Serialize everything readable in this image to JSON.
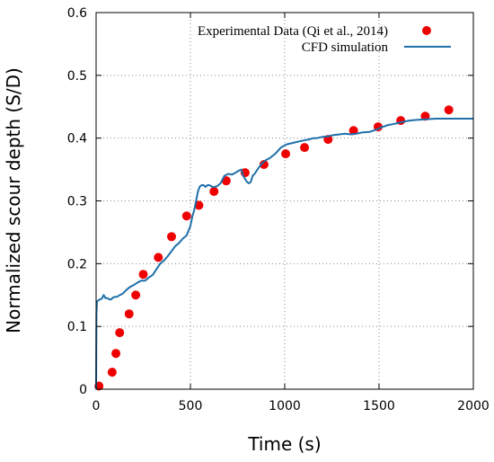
{
  "chart_data": {
    "type": "line",
    "title": "",
    "xlabel": "Time (s)",
    "ylabel": "Normalized scour depth (S/D)",
    "xlim": [
      0,
      2000
    ],
    "ylim": [
      0,
      0.6
    ],
    "xticks": [
      0,
      500,
      1000,
      1500,
      2000
    ],
    "yticks": [
      0,
      0.1,
      0.2,
      0.3,
      0.4,
      0.5,
      0.6
    ],
    "grid": "dotted",
    "legend_position": "top-right",
    "series": [
      {
        "name": "Experimental Data (Qi et al., 2014)",
        "kind": "scatter",
        "color": "#ee0000",
        "x": [
          15,
          85,
          105,
          125,
          175,
          210,
          250,
          330,
          400,
          480,
          545,
          625,
          690,
          790,
          890,
          1005,
          1105,
          1230,
          1365,
          1495,
          1615,
          1745,
          1870
        ],
        "y": [
          0.005,
          0.027,
          0.057,
          0.09,
          0.12,
          0.15,
          0.183,
          0.21,
          0.243,
          0.276,
          0.293,
          0.315,
          0.332,
          0.345,
          0.358,
          0.375,
          0.385,
          0.398,
          0.412,
          0.418,
          0.428,
          0.435,
          0.445
        ]
      },
      {
        "name": "CFD simulation",
        "kind": "line",
        "color": "#1f6fa9",
        "x": [
          0,
          2,
          5,
          10,
          20,
          30,
          40,
          50,
          60,
          70,
          80,
          90,
          100,
          110,
          125,
          140,
          160,
          180,
          200,
          220,
          240,
          260,
          280,
          300,
          320,
          340,
          360,
          380,
          400,
          420,
          440,
          460,
          480,
          500,
          510,
          520,
          530,
          540,
          550,
          560,
          570,
          580,
          590,
          600,
          620,
          640,
          660,
          680,
          700,
          720,
          740,
          755,
          770,
          780,
          790,
          800,
          810,
          820,
          830,
          840,
          860,
          880,
          900,
          920,
          950,
          980,
          1010,
          1050,
          1080,
          1110,
          1130,
          1150,
          1170,
          1200,
          1230,
          1260,
          1290,
          1320,
          1350,
          1380,
          1410,
          1450,
          1490,
          1510,
          1530,
          1550,
          1570,
          1600,
          1630,
          1660,
          1700,
          1750,
          1800,
          1850,
          1900,
          1950,
          2000
        ],
        "y": [
          0.0,
          0.12,
          0.14,
          0.141,
          0.143,
          0.144,
          0.15,
          0.145,
          0.145,
          0.143,
          0.143,
          0.146,
          0.147,
          0.147,
          0.15,
          0.152,
          0.158,
          0.163,
          0.166,
          0.17,
          0.173,
          0.173,
          0.178,
          0.182,
          0.191,
          0.2,
          0.205,
          0.212,
          0.22,
          0.228,
          0.233,
          0.24,
          0.245,
          0.26,
          0.275,
          0.285,
          0.3,
          0.315,
          0.323,
          0.325,
          0.325,
          0.322,
          0.325,
          0.325,
          0.322,
          0.323,
          0.328,
          0.34,
          0.343,
          0.342,
          0.345,
          0.348,
          0.35,
          0.34,
          0.335,
          0.33,
          0.328,
          0.33,
          0.34,
          0.343,
          0.352,
          0.36,
          0.365,
          0.368,
          0.375,
          0.385,
          0.39,
          0.393,
          0.395,
          0.397,
          0.398,
          0.4,
          0.4,
          0.402,
          0.403,
          0.405,
          0.406,
          0.407,
          0.406,
          0.407,
          0.409,
          0.41,
          0.414,
          0.417,
          0.419,
          0.421,
          0.422,
          0.424,
          0.426,
          0.428,
          0.429,
          0.43,
          0.431,
          0.431,
          0.431,
          0.431,
          0.431
        ]
      }
    ]
  }
}
